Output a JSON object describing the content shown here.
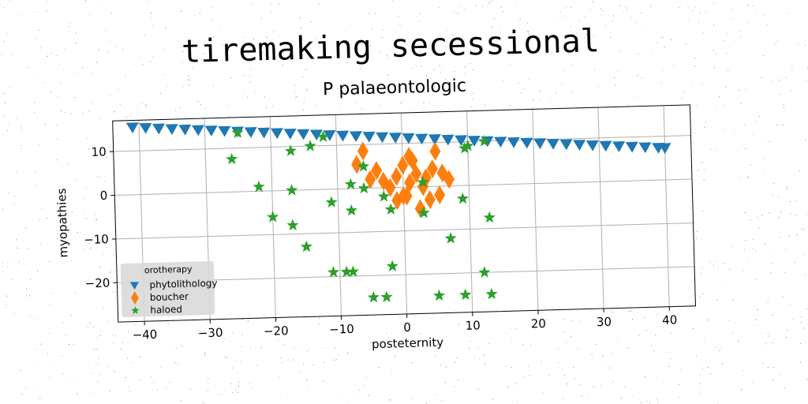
{
  "chart_data": {
    "type": "scatter",
    "title": "tiremaking secessional",
    "subtitle": "P palaeontologic",
    "xlabel": "posteternity",
    "ylabel": "myopathies",
    "xlim": [
      -44,
      44
    ],
    "ylim": [
      -29,
      17
    ],
    "xticks": [
      -40,
      -30,
      -20,
      -10,
      0,
      10,
      20,
      30,
      40
    ],
    "yticks": [
      -20,
      -10,
      0,
      10
    ],
    "grid": true,
    "legend": {
      "title": "orotherapy",
      "placement": "lower-left"
    },
    "series": [
      {
        "name": "phytolithology",
        "marker": "triangle-down",
        "color": "#1f77b4",
        "points": [
          [
            -41,
            15.4
          ],
          [
            -39,
            15.2
          ],
          [
            -37,
            15.0
          ],
          [
            -35,
            14.8
          ],
          [
            -33,
            14.6
          ],
          [
            -31,
            14.4
          ],
          [
            -29,
            14.2
          ],
          [
            -27,
            14.0
          ],
          [
            -25,
            13.8
          ],
          [
            -23,
            13.6
          ],
          [
            -21,
            13.4
          ],
          [
            -19,
            13.2
          ],
          [
            -17,
            13.0
          ],
          [
            -15,
            12.8
          ],
          [
            -13,
            12.6
          ],
          [
            -11,
            12.4
          ],
          [
            -9,
            12.2
          ],
          [
            -7,
            12.0
          ],
          [
            -5,
            11.8
          ],
          [
            -3,
            11.6
          ],
          [
            -1,
            11.4
          ],
          [
            1,
            11.2
          ],
          [
            3,
            11.0
          ],
          [
            5,
            10.8
          ],
          [
            7,
            10.6
          ],
          [
            9,
            10.4
          ],
          [
            11,
            10.2
          ],
          [
            13,
            10.0
          ],
          [
            15,
            9.8
          ],
          [
            17,
            9.6
          ],
          [
            19,
            9.4
          ],
          [
            21,
            9.2
          ],
          [
            23,
            9.0
          ],
          [
            25,
            8.8
          ],
          [
            27,
            8.6
          ],
          [
            29,
            8.4
          ],
          [
            31,
            8.2
          ],
          [
            33,
            8.0
          ],
          [
            35,
            7.8
          ],
          [
            37,
            7.6
          ],
          [
            39,
            7.4
          ],
          [
            40,
            7.3
          ]
        ]
      },
      {
        "name": "boucher",
        "marker": "diamond",
        "color": "#ff7f0e",
        "points": [
          [
            -7,
            5.5
          ],
          [
            -6,
            8.5
          ],
          [
            -5,
            2
          ],
          [
            -4,
            4
          ],
          [
            -3,
            1.5
          ],
          [
            -2,
            0
          ],
          [
            -1,
            2.5
          ],
          [
            0,
            5
          ],
          [
            0.5,
            -2
          ],
          [
            1,
            1
          ],
          [
            1.5,
            6
          ],
          [
            2,
            3
          ],
          [
            2.5,
            -5
          ],
          [
            3,
            0
          ],
          [
            3.5,
            2
          ],
          [
            4,
            -3
          ],
          [
            4.5,
            4
          ],
          [
            5,
            8
          ],
          [
            5.5,
            -2
          ],
          [
            6,
            3
          ],
          [
            7,
            1.5
          ],
          [
            -1,
            -3
          ],
          [
            0,
            -2
          ],
          [
            1,
            7
          ]
        ]
      },
      {
        "name": "haloed",
        "marker": "star",
        "color": "#2ca02c",
        "points": [
          [
            -25,
            13.5
          ],
          [
            -26,
            7.5
          ],
          [
            -22,
            1
          ],
          [
            -20,
            -6
          ],
          [
            -17,
            9
          ],
          [
            -17,
            0
          ],
          [
            -17,
            -8
          ],
          [
            -15,
            -13
          ],
          [
            -14,
            10
          ],
          [
            -12,
            12
          ],
          [
            -11,
            -3
          ],
          [
            -11,
            -19
          ],
          [
            -9,
            -19
          ],
          [
            -8,
            -19
          ],
          [
            -8,
            1
          ],
          [
            -8,
            -5
          ],
          [
            -6,
            5
          ],
          [
            -6,
            0
          ],
          [
            -5,
            -25
          ],
          [
            -3,
            -2
          ],
          [
            -3,
            -25
          ],
          [
            -2,
            -5
          ],
          [
            -2,
            -18
          ],
          [
            3,
            -6
          ],
          [
            3,
            1
          ],
          [
            5,
            -25
          ],
          [
            7,
            -12
          ],
          [
            9,
            -3
          ],
          [
            9,
            -25
          ],
          [
            9.5,
            8.5
          ],
          [
            10,
            9
          ],
          [
            12,
            -20
          ],
          [
            12.5,
            10
          ],
          [
            13,
            -7.5
          ],
          [
            13,
            -25
          ]
        ]
      }
    ]
  }
}
